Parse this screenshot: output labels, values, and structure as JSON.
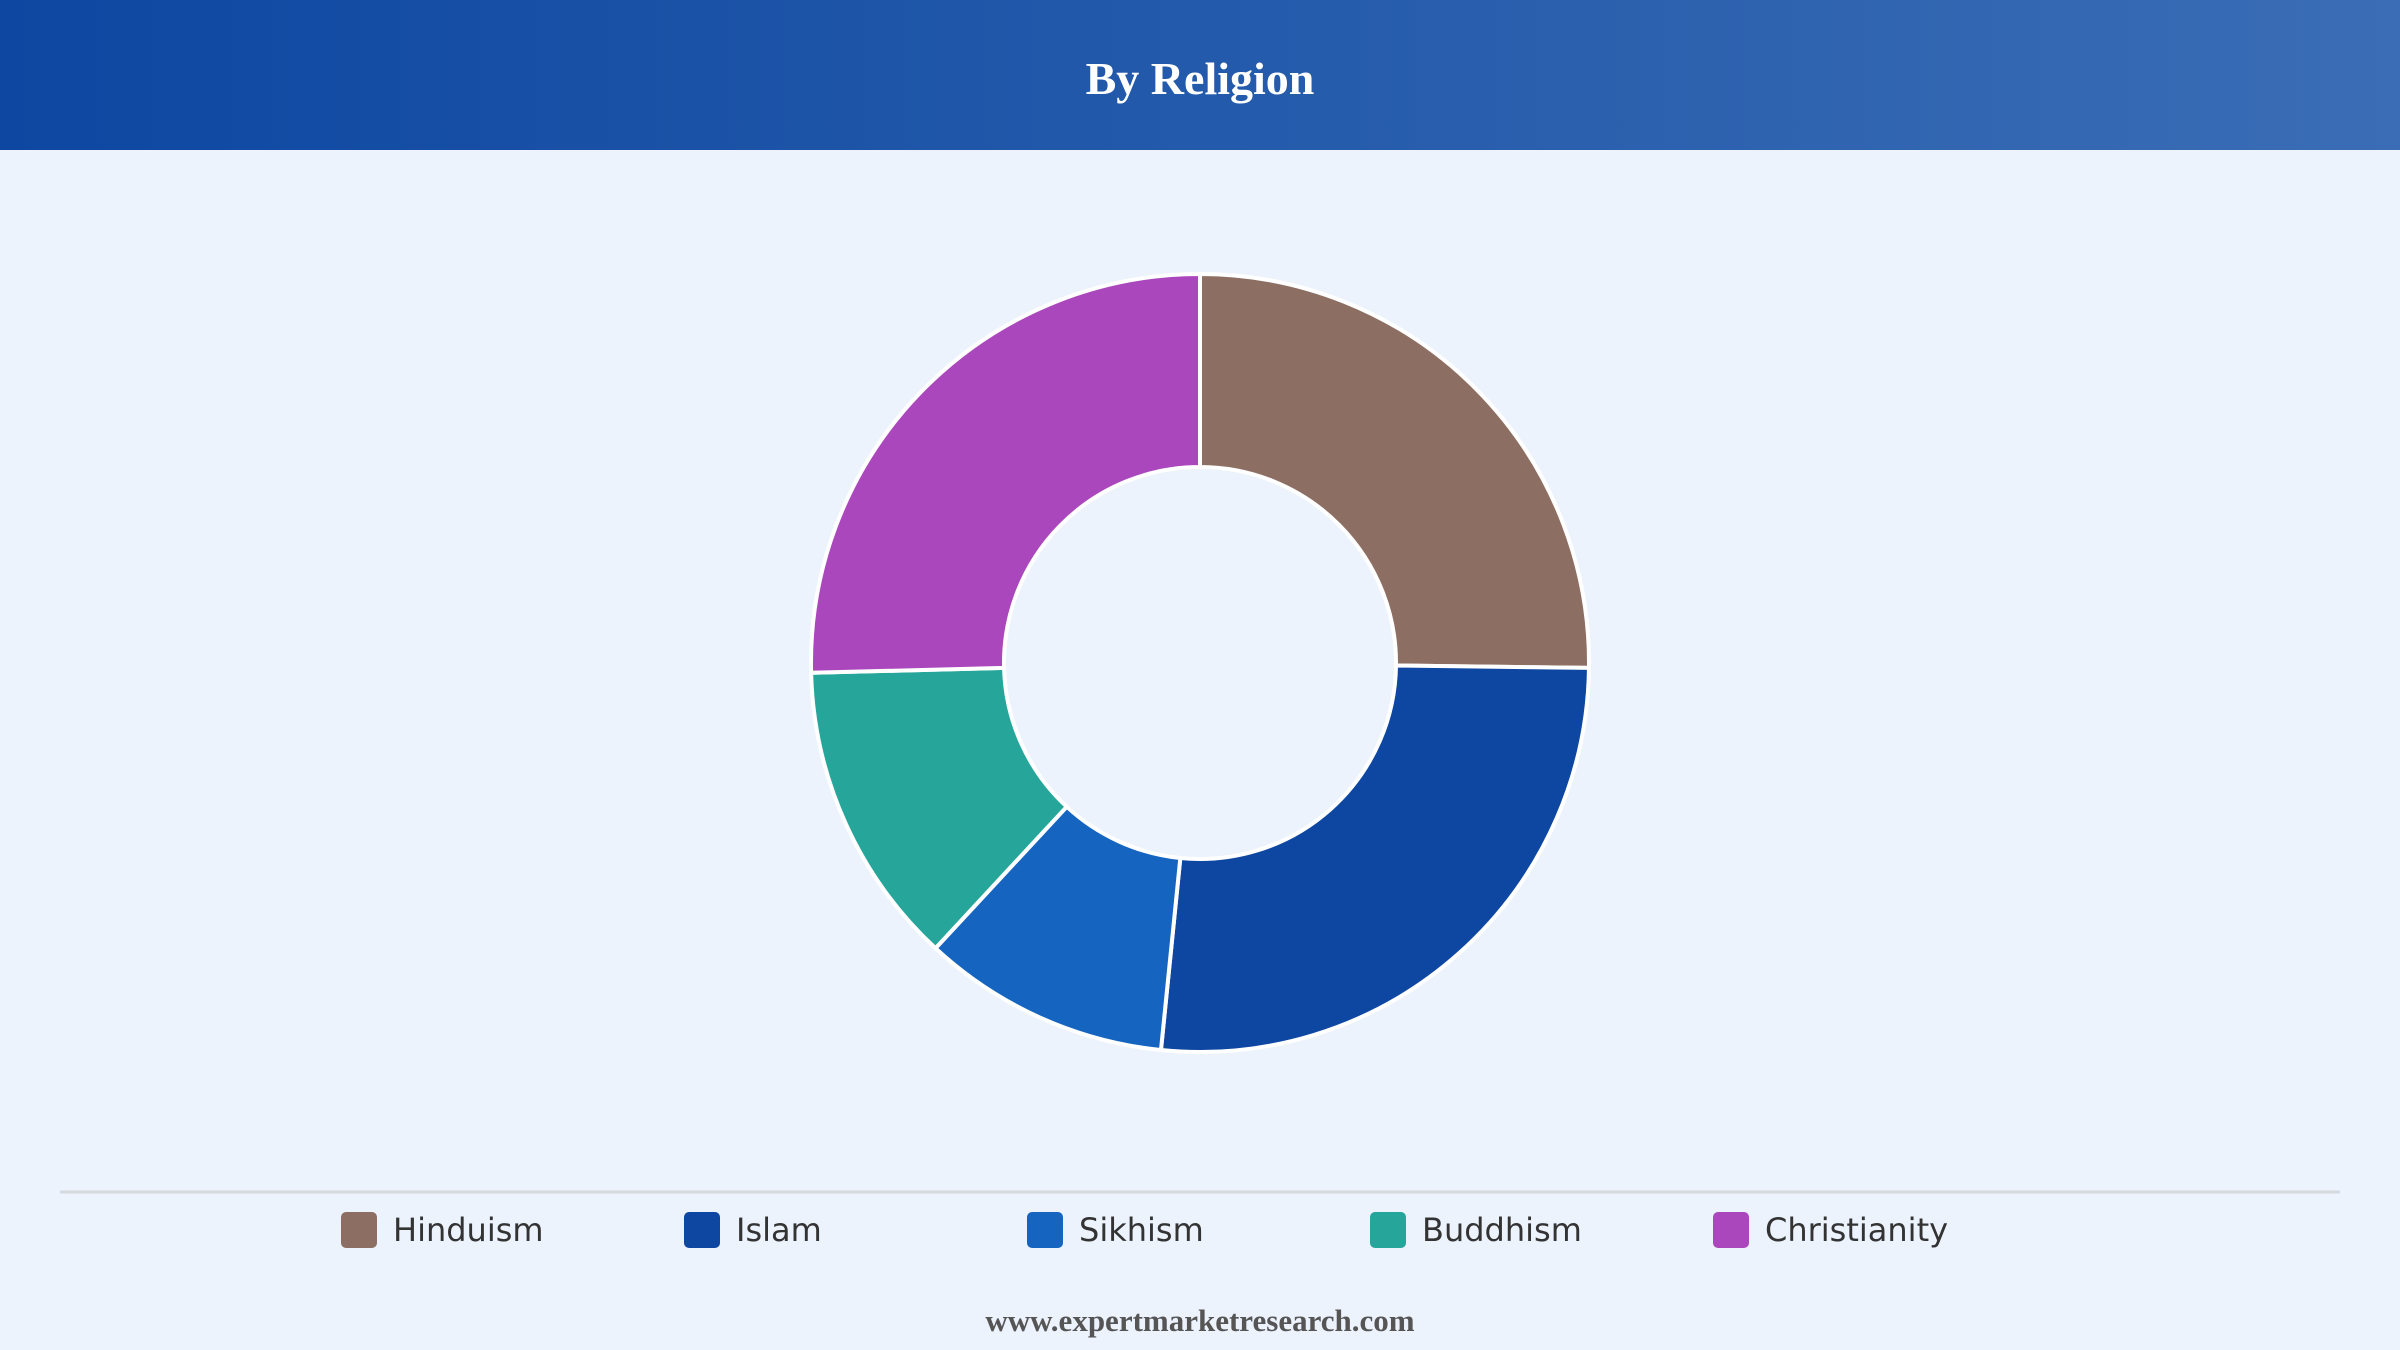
{
  "chart_data": {
    "type": "donut",
    "title": "By Religion",
    "categories": [
      "Hinduism",
      "Islam",
      "Sikhism",
      "Buddhism",
      "Christianity"
    ],
    "values": [
      25.2,
      26.4,
      10.3,
      12.7,
      25.4
    ],
    "colors": [
      "#8d6e63",
      "#0d47a1",
      "#1565c0",
      "#26a69a",
      "#ab47bc"
    ],
    "legend": "bottom"
  },
  "footer": "www.expertmarketresearch.com"
}
